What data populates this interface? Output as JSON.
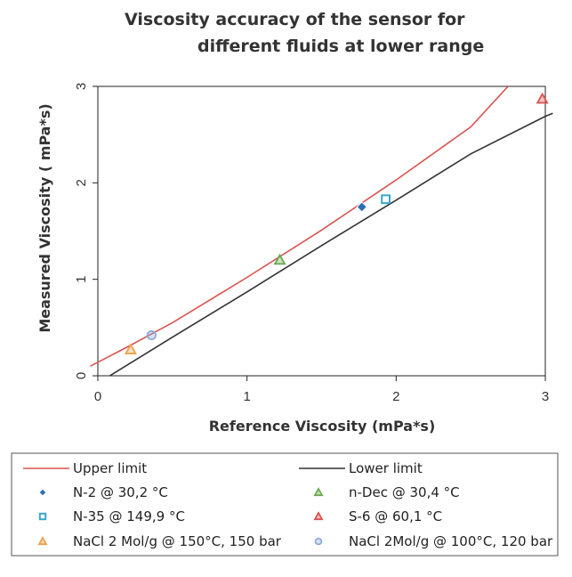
{
  "chart_data": {
    "type": "scatter",
    "title": [
      "Viscosity accuracy of the sensor for",
      "different fluids at lower range"
    ],
    "xlabel": "Reference Viscosity (mPa*s)",
    "ylabel": "Measured Viscosity ( mPa*s)",
    "xlim": [
      0,
      3
    ],
    "ylim": [
      0,
      3
    ],
    "xticks": [
      "0",
      "1",
      "2",
      "3"
    ],
    "yticks": [
      "0",
      "1",
      "2",
      "3"
    ],
    "grid": false,
    "legend_position": "bottom",
    "lines": [
      {
        "name": "Upper limit",
        "color": "#d9534f",
        "x": [
          -0.05,
          0.2,
          0.5,
          1.0,
          1.5,
          2.0,
          2.5,
          2.75
        ],
        "y": [
          0.1,
          0.3,
          0.55,
          1.02,
          1.51,
          2.03,
          2.58,
          3.0
        ]
      },
      {
        "name": "Lower limit",
        "color": "#333333",
        "x": [
          0.08,
          0.5,
          1.0,
          1.5,
          2.0,
          2.5,
          3.0,
          3.05
        ],
        "y": [
          0.0,
          0.4,
          0.87,
          1.35,
          1.82,
          2.3,
          2.69,
          2.72
        ]
      }
    ],
    "series": [
      {
        "name": "N-2 @ 30,2 °C",
        "marker": "diamond",
        "color": "#2e6fb5",
        "x": [
          1.77
        ],
        "y": [
          1.75
        ]
      },
      {
        "name": "n-Dec @ 30,4 °C",
        "marker": "triangle",
        "color": "#6aa84f",
        "x": [
          1.22
        ],
        "y": [
          1.2
        ]
      },
      {
        "name": "N-35 @ 149,9 °C",
        "marker": "square",
        "color": "#3aa7c9",
        "x": [
          1.93
        ],
        "y": [
          1.83
        ]
      },
      {
        "name": "S-6 @ 60,1 °C",
        "marker": "triangle",
        "color": "#d9534f",
        "x": [
          2.98
        ],
        "y": [
          2.87
        ]
      },
      {
        "name": "NaCl 2 Mol/g @ 150°C, 150 bar",
        "marker": "triangle",
        "color": "#f0a04b",
        "x": [
          0.22
        ],
        "y": [
          0.27
        ]
      },
      {
        "name": "NaCl 2Mol/g @ 100°C, 120 bar",
        "marker": "circle",
        "color": "#8eaadb",
        "x": [
          0.36
        ],
        "y": [
          0.42
        ]
      }
    ],
    "legend": [
      {
        "label": "Upper limit",
        "kind": "line",
        "color": "#d9534f"
      },
      {
        "label": "Lower limit",
        "kind": "line",
        "color": "#333333"
      },
      {
        "label": "N-2 @ 30,2 °C",
        "kind": "diamond",
        "color": "#2e6fb5"
      },
      {
        "label": "n-Dec @ 30,4 °C",
        "kind": "triangle",
        "color": "#6aa84f"
      },
      {
        "label": "N-35 @ 149,9 °C",
        "kind": "square",
        "color": "#3aa7c9"
      },
      {
        "label": "S-6 @ 60,1 °C",
        "kind": "triangle",
        "color": "#d9534f"
      },
      {
        "label": "NaCl 2 Mol/g @ 150°C, 150 bar",
        "kind": "triangle",
        "color": "#f0a04b"
      },
      {
        "label": "NaCl 2Mol/g @ 100°C, 120 bar",
        "kind": "circle",
        "color": "#8eaadb"
      }
    ]
  }
}
